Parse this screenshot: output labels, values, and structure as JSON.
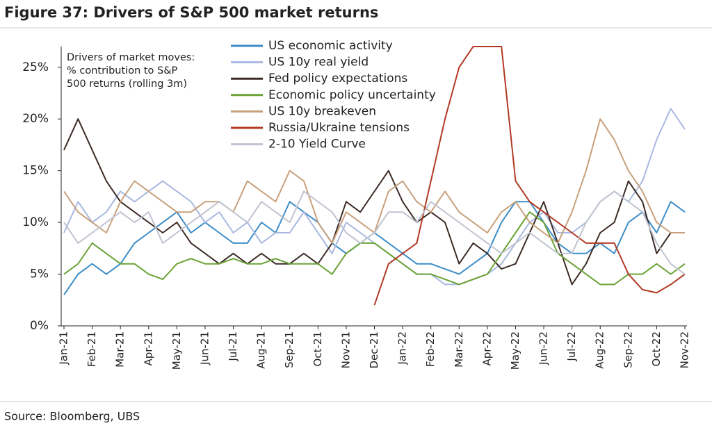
{
  "chart_data": {
    "type": "line",
    "title": "Figure 37: Drivers of S&P 500 market returns",
    "annotation": [
      "Drivers of market moves:",
      "% contribution to S&P",
      "500 returns (rolling 3m)"
    ],
    "source": "Source: Bloomberg, UBS",
    "categories": [
      "Jan-21",
      null,
      "Feb-21",
      null,
      "Mar-21",
      null,
      "Apr-21",
      null,
      "May-21",
      null,
      "Jun-21",
      null,
      "Jul-21",
      null,
      "Aug-21",
      null,
      "Sep-21",
      null,
      "Oct-21",
      null,
      "Nov-21",
      null,
      "Dec-21",
      null,
      "Jan-22",
      null,
      "Feb-22",
      null,
      "Mar-22",
      null,
      "Apr-22",
      null,
      "May-22",
      null,
      "Jun-22",
      null,
      "Jul-22",
      null,
      "Aug-22",
      null,
      "Sep-22",
      null,
      "Oct-22",
      null,
      "Nov-22"
    ],
    "ylim": [
      0,
      27
    ],
    "yticks": [
      {
        "value": 0,
        "label": "0%"
      },
      {
        "value": 5,
        "label": "5%"
      },
      {
        "value": 10,
        "label": "10%"
      },
      {
        "value": 15,
        "label": "15%"
      },
      {
        "value": 20,
        "label": "20%"
      },
      {
        "value": 25,
        "label": "25%"
      }
    ],
    "grid": false,
    "legend": "top",
    "series": [
      {
        "name": "US economic activity",
        "color": "#3c8dc8",
        "values": [
          3,
          5,
          6,
          5,
          6,
          8,
          9,
          10,
          11,
          9,
          10,
          9,
          8,
          8,
          10,
          9,
          12,
          11,
          10,
          8,
          7,
          8,
          9,
          8,
          7,
          6,
          6,
          5.5,
          5,
          6,
          7,
          10,
          12,
          12,
          10,
          8,
          7,
          7,
          8,
          7,
          10,
          11,
          9,
          12,
          11
        ]
      },
      {
        "name": "US 10y real yield",
        "color": "#a9b8e0",
        "values": [
          9,
          12,
          10,
          11,
          13,
          12,
          13,
          14,
          13,
          12,
          10,
          11,
          9,
          10,
          8,
          9,
          9,
          11,
          9,
          7,
          10,
          9,
          8,
          7,
          6,
          5,
          5,
          4,
          4,
          4.5,
          5,
          6,
          8,
          10,
          11,
          9,
          9,
          10,
          12,
          13,
          12,
          14,
          18,
          21,
          19
        ]
      },
      {
        "name": "Fed policy expectations",
        "color": "#3d2b25",
        "values": [
          17,
          20,
          17,
          14,
          12,
          11,
          10,
          9,
          10,
          8,
          7,
          6,
          7,
          6,
          7,
          6,
          6,
          7,
          6,
          8,
          12,
          11,
          13,
          15,
          12,
          10,
          11,
          10,
          6,
          8,
          7,
          5.5,
          6,
          9,
          12,
          8,
          4,
          6,
          9,
          10,
          14,
          12,
          7,
          9,
          9
        ]
      },
      {
        "name": "Economic policy uncertainty",
        "color": "#6aa336",
        "values": [
          5,
          6,
          8,
          7,
          6,
          6,
          5,
          4.5,
          6,
          6.5,
          6,
          6,
          6.5,
          6,
          6,
          6.5,
          6,
          6,
          6,
          5,
          7,
          8,
          8,
          7,
          6,
          5,
          5,
          4.5,
          4,
          4.5,
          5,
          7,
          9,
          11,
          10,
          7,
          6,
          5,
          4,
          4,
          5,
          5,
          6,
          5,
          6
        ]
      },
      {
        "name": "US 10y breakeven",
        "color": "#c8a07c",
        "values": [
          13,
          11,
          10,
          9,
          12,
          14,
          13,
          12,
          11,
          11,
          12,
          12,
          11,
          14,
          13,
          12,
          15,
          14,
          10,
          8,
          11,
          10,
          9,
          13,
          14,
          12,
          11,
          13,
          11,
          10,
          9,
          11,
          12,
          10,
          9,
          8,
          11,
          15,
          20,
          18,
          15,
          13,
          10,
          9,
          9
        ]
      },
      {
        "name": "Russia/Ukraine tensions",
        "color": "#b23a25",
        "values": [
          null,
          null,
          null,
          null,
          null,
          null,
          null,
          null,
          null,
          null,
          null,
          null,
          null,
          null,
          null,
          null,
          null,
          null,
          null,
          null,
          null,
          null,
          2,
          6,
          7,
          8,
          14,
          20,
          25,
          27,
          27,
          27,
          14,
          12,
          11,
          10,
          9,
          8,
          8,
          8,
          5,
          3.5,
          3.2,
          4,
          5
        ]
      },
      {
        "name": "2-10 Yield Curve",
        "color": "#c0c4d0",
        "values": [
          10,
          8,
          9,
          10,
          11,
          10,
          11,
          8,
          9,
          10,
          11,
          12,
          11,
          10,
          12,
          11,
          10,
          13,
          12,
          11,
          9,
          8,
          9,
          11,
          11,
          10,
          12,
          11,
          10,
          9,
          8,
          7,
          8,
          9,
          8,
          7,
          7,
          10,
          12,
          13,
          12,
          11,
          8,
          6,
          5
        ]
      }
    ]
  }
}
